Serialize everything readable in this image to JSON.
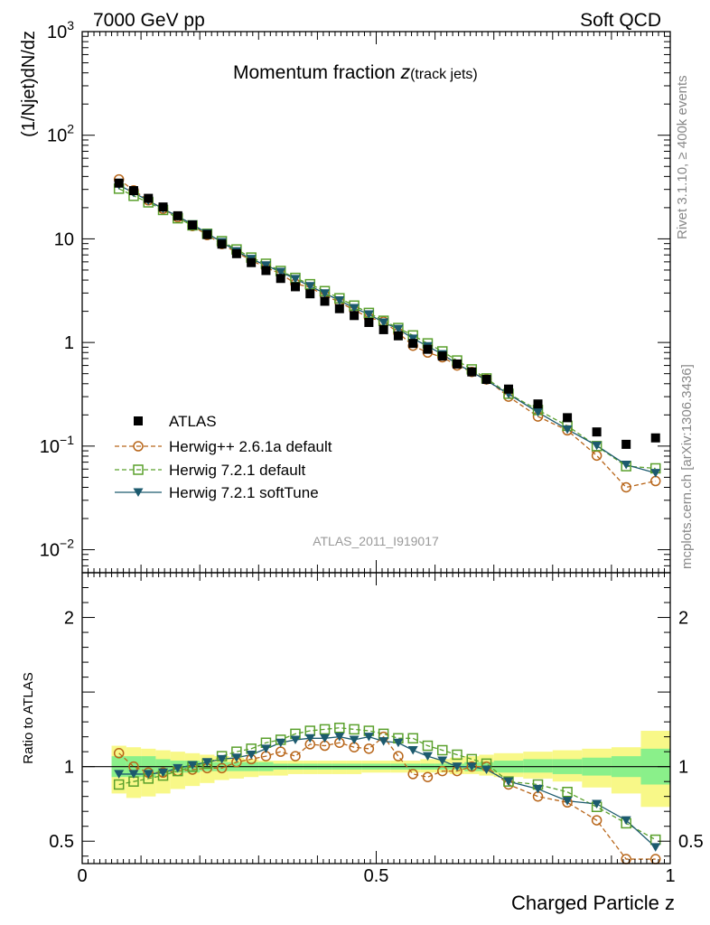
{
  "header": {
    "left": "7000 GeV pp",
    "right": "Soft QCD"
  },
  "side": {
    "upper": "Rivet 3.1.10, ≥ 400k events",
    "lower": "mcplots.cern.ch [arXiv:1306.3436]"
  },
  "chart_data": {
    "type": "scatter",
    "title_main": "Momentum fraction ",
    "title_var": "z",
    "title_sub": "(track jets)",
    "analysis_label": "ATLAS_2011_I919017",
    "xlabel": "Charged Particle z",
    "ylabel": "(1/Njet)dN/dz",
    "ratio_ylabel": "Ratio to ATLAS",
    "xlim": [
      0,
      1
    ],
    "ylim": [
      0.006,
      1000
    ],
    "yscale": "log",
    "ratio_ylim": [
      0.35,
      2.3
    ],
    "x_ticks": [
      {
        "value": 0,
        "label": "0"
      },
      {
        "value": 0.5,
        "label": "0.5"
      },
      {
        "value": 1,
        "label": "1"
      }
    ],
    "y_ticks": [
      {
        "value": 1000,
        "label": "10",
        "exp": "3"
      },
      {
        "value": 100,
        "label": "10",
        "exp": "2"
      },
      {
        "value": 10,
        "label": "10",
        "exp": ""
      },
      {
        "value": 1,
        "label": "1",
        "exp": ""
      },
      {
        "value": 0.1,
        "label": "10",
        "exp": "−1"
      },
      {
        "value": 0.01,
        "label": "10",
        "exp": "−2"
      }
    ],
    "ratio_ticks": [
      {
        "value": 2,
        "label": "2"
      },
      {
        "value": 1,
        "label": "1"
      },
      {
        "value": 0.5,
        "label": "0.5"
      }
    ],
    "legend": [
      {
        "key": "atlas",
        "label": "ATLAS"
      },
      {
        "key": "hw26",
        "label": "Herwig++ 2.6.1a default"
      },
      {
        "key": "hw72",
        "label": "Herwig 7.2.1 default"
      },
      {
        "key": "hw72st",
        "label": "Herwig 7.2.1 softTune"
      }
    ],
    "x": [
      0.0625,
      0.0875,
      0.1125,
      0.1375,
      0.1625,
      0.1875,
      0.2125,
      0.2375,
      0.2625,
      0.2875,
      0.3125,
      0.3375,
      0.3625,
      0.3875,
      0.4125,
      0.4375,
      0.4625,
      0.4875,
      0.5125,
      0.5375,
      0.5625,
      0.5875,
      0.6125,
      0.6375,
      0.6625,
      0.6875,
      0.725,
      0.775,
      0.825,
      0.875,
      0.925,
      0.975
    ],
    "series": [
      {
        "key": "atlas",
        "name": "ATLAS",
        "color": "#000000",
        "marker": "filled-square",
        "values": [
          34.5,
          29.2,
          24.6,
          20.3,
          16.7,
          13.6,
          11.0,
          8.9,
          7.2,
          5.9,
          4.95,
          4.15,
          3.45,
          2.95,
          2.5,
          2.12,
          1.82,
          1.56,
          1.33,
          1.16,
          0.98,
          0.86,
          0.74,
          0.62,
          0.52,
          0.44,
          0.355,
          0.255,
          0.188,
          0.137,
          0.104,
          0.12
        ]
      },
      {
        "key": "hw26",
        "name": "Herwig++ 2.6.1a default",
        "color": "#b8661a",
        "marker": "open-circle",
        "dash": "5,3",
        "values": [
          37.5,
          29.4,
          23.6,
          19.5,
          16.2,
          13.3,
          10.9,
          8.9,
          7.4,
          6.2,
          5.3,
          4.6,
          3.7,
          3.4,
          2.85,
          2.45,
          2.05,
          1.74,
          1.59,
          1.24,
          0.93,
          0.8,
          0.72,
          0.6,
          0.52,
          0.44,
          0.3,
          0.193,
          0.142,
          0.081,
          0.04,
          0.046
        ]
      },
      {
        "key": "hw72",
        "name": "Herwig 7.2.1 default",
        "color": "#5aa02c",
        "marker": "open-square",
        "dash": "5,3",
        "values": [
          30.5,
          26.0,
          22.5,
          19.0,
          15.8,
          13.5,
          11.2,
          9.5,
          7.9,
          6.6,
          5.75,
          4.9,
          4.2,
          3.65,
          3.13,
          2.67,
          2.27,
          1.93,
          1.62,
          1.38,
          1.17,
          0.98,
          0.82,
          0.67,
          0.55,
          0.45,
          0.32,
          0.223,
          0.157,
          0.1,
          0.064,
          0.061
        ]
      },
      {
        "key": "hw72st",
        "name": "Herwig 7.2.1 softTune",
        "color": "#1c5a6e",
        "marker": "filled-triangle-down",
        "values": [
          33.0,
          27.8,
          23.4,
          19.5,
          16.5,
          13.8,
          11.3,
          9.3,
          7.6,
          6.4,
          5.55,
          4.8,
          4.1,
          3.5,
          2.98,
          2.55,
          2.15,
          1.87,
          1.56,
          1.35,
          1.09,
          0.92,
          0.77,
          0.62,
          0.52,
          0.43,
          0.318,
          0.212,
          0.145,
          0.101,
          0.066,
          0.055
        ]
      }
    ],
    "ratios": [
      {
        "key": "hw26",
        "values": [
          1.09,
          1.0,
          0.96,
          0.96,
          0.97,
          0.98,
          0.99,
          0.99,
          1.03,
          1.05,
          1.07,
          1.1,
          1.07,
          1.15,
          1.14,
          1.16,
          1.13,
          1.12,
          1.2,
          1.07,
          0.95,
          0.93,
          0.97,
          0.97,
          1.0,
          1.0,
          0.88,
          0.8,
          0.76,
          0.64,
          0.38,
          0.38
        ]
      },
      {
        "key": "hw72",
        "values": [
          0.88,
          0.9,
          0.92,
          0.94,
          0.97,
          1.0,
          1.02,
          1.07,
          1.1,
          1.12,
          1.16,
          1.18,
          1.22,
          1.24,
          1.25,
          1.26,
          1.25,
          1.24,
          1.22,
          1.19,
          1.19,
          1.14,
          1.11,
          1.08,
          1.05,
          1.02,
          0.9,
          0.88,
          0.83,
          0.73,
          0.62,
          0.51
        ]
      },
      {
        "key": "hw72st",
        "values": [
          0.95,
          0.95,
          0.95,
          0.96,
          0.99,
          1.01,
          1.03,
          1.05,
          1.06,
          1.08,
          1.12,
          1.16,
          1.18,
          1.19,
          1.19,
          1.2,
          1.18,
          1.2,
          1.17,
          1.16,
          1.11,
          1.07,
          1.04,
          1.0,
          1.0,
          0.98,
          0.9,
          0.85,
          0.77,
          0.75,
          0.64,
          0.46
        ]
      }
    ],
    "bands": {
      "inner_color": "#8af08a",
      "outer_color": "#f8f888",
      "x_ranges": [
        [
          0.05,
          0.075
        ],
        [
          0.075,
          0.1
        ],
        [
          0.1,
          0.125
        ],
        [
          0.125,
          0.15
        ],
        [
          0.15,
          0.175
        ],
        [
          0.175,
          0.2
        ],
        [
          0.2,
          0.225
        ],
        [
          0.225,
          0.25
        ],
        [
          0.25,
          0.275
        ],
        [
          0.275,
          0.3
        ],
        [
          0.3,
          0.325
        ],
        [
          0.325,
          0.35
        ],
        [
          0.35,
          0.375
        ],
        [
          0.375,
          0.4
        ],
        [
          0.4,
          0.425
        ],
        [
          0.425,
          0.45
        ],
        [
          0.45,
          0.475
        ],
        [
          0.475,
          0.5
        ],
        [
          0.5,
          0.525
        ],
        [
          0.525,
          0.55
        ],
        [
          0.55,
          0.575
        ],
        [
          0.575,
          0.6
        ],
        [
          0.6,
          0.625
        ],
        [
          0.625,
          0.65
        ],
        [
          0.65,
          0.675
        ],
        [
          0.675,
          0.7
        ],
        [
          0.7,
          0.75
        ],
        [
          0.75,
          0.8
        ],
        [
          0.8,
          0.85
        ],
        [
          0.85,
          0.9
        ],
        [
          0.9,
          0.95
        ],
        [
          0.95,
          1.0
        ]
      ],
      "inner": [
        [
          0.93,
          1.07
        ],
        [
          0.93,
          1.07
        ],
        [
          0.93,
          1.07
        ],
        [
          0.95,
          1.05
        ],
        [
          0.96,
          1.04
        ],
        [
          0.96,
          1.04
        ],
        [
          0.97,
          1.03
        ],
        [
          0.97,
          1.03
        ],
        [
          0.97,
          1.03
        ],
        [
          0.97,
          1.03
        ],
        [
          0.97,
          1.03
        ],
        [
          0.98,
          1.02
        ],
        [
          0.98,
          1.02
        ],
        [
          0.98,
          1.02
        ],
        [
          0.98,
          1.02
        ],
        [
          0.98,
          1.02
        ],
        [
          0.98,
          1.02
        ],
        [
          0.98,
          1.02
        ],
        [
          0.98,
          1.02
        ],
        [
          0.98,
          1.02
        ],
        [
          0.98,
          1.02
        ],
        [
          0.98,
          1.02
        ],
        [
          0.98,
          1.02
        ],
        [
          0.98,
          1.02
        ],
        [
          0.97,
          1.03
        ],
        [
          0.97,
          1.03
        ],
        [
          0.96,
          1.04
        ],
        [
          0.96,
          1.05
        ],
        [
          0.95,
          1.05
        ],
        [
          0.94,
          1.06
        ],
        [
          0.93,
          1.07
        ],
        [
          0.88,
          1.12
        ]
      ],
      "outer": [
        [
          0.82,
          1.14
        ],
        [
          0.79,
          1.13
        ],
        [
          0.8,
          1.12
        ],
        [
          0.82,
          1.11
        ],
        [
          0.85,
          1.1
        ],
        [
          0.87,
          1.09
        ],
        [
          0.89,
          1.08
        ],
        [
          0.91,
          1.07
        ],
        [
          0.92,
          1.06
        ],
        [
          0.93,
          1.05
        ],
        [
          0.94,
          1.04
        ],
        [
          0.94,
          1.04
        ],
        [
          0.95,
          1.04
        ],
        [
          0.95,
          1.04
        ],
        [
          0.95,
          1.04
        ],
        [
          0.95,
          1.04
        ],
        [
          0.95,
          1.04
        ],
        [
          0.96,
          1.04
        ],
        [
          0.96,
          1.04
        ],
        [
          0.96,
          1.04
        ],
        [
          0.96,
          1.04
        ],
        [
          0.96,
          1.05
        ],
        [
          0.96,
          1.05
        ],
        [
          0.95,
          1.06
        ],
        [
          0.95,
          1.07
        ],
        [
          0.94,
          1.08
        ],
        [
          0.93,
          1.09
        ],
        [
          0.92,
          1.1
        ],
        [
          0.9,
          1.11
        ],
        [
          0.86,
          1.12
        ],
        [
          0.82,
          1.13
        ],
        [
          0.73,
          1.24
        ]
      ]
    }
  }
}
